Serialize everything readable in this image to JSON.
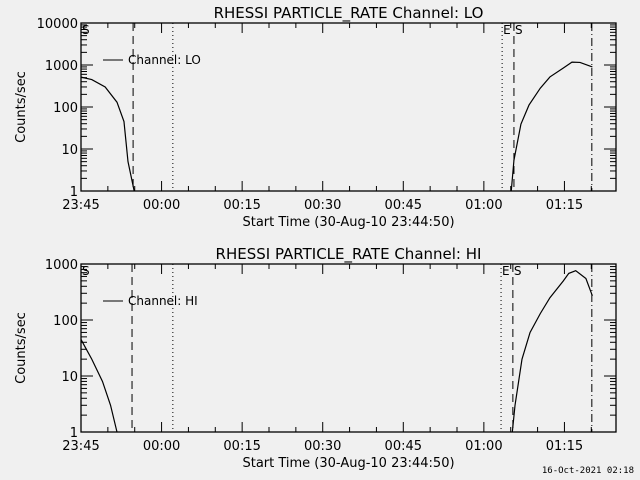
{
  "chart_data": [
    {
      "type": "line",
      "title": "RHESSI PARTICLE_RATE Channel: LO",
      "xlabel": "Start Time (30-Aug-10 23:44:50)",
      "ylabel": "Counts/sec",
      "yscale": "log",
      "ylim": [
        1,
        10000
      ],
      "xlim_minutes_after_2345": [
        0,
        99.6
      ],
      "xticks": [
        {
          "m": 0,
          "label": "23:45"
        },
        {
          "m": 15,
          "label": "00:00"
        },
        {
          "m": 30,
          "label": "00:15"
        },
        {
          "m": 45,
          "label": "00:30"
        },
        {
          "m": 60,
          "label": "00:45"
        },
        {
          "m": 75,
          "label": "01:00"
        },
        {
          "m": 90,
          "label": "01:15"
        }
      ],
      "yticks": [
        {
          "v": 1,
          "label": "1"
        },
        {
          "v": 10,
          "label": "10"
        },
        {
          "v": 100,
          "label": "100"
        },
        {
          "v": 1000,
          "label": "1000"
        },
        {
          "v": 10000,
          "label": "10000"
        }
      ],
      "legend": {
        "label": "Channel: LO",
        "placement": "top-left"
      },
      "markers": [
        {
          "m": 9.7,
          "style": "dashed"
        },
        {
          "m": 17.1,
          "style": "dotted"
        },
        {
          "m": 78.4,
          "style": "dotted"
        },
        {
          "m": 80.6,
          "style": "dashed"
        },
        {
          "m": 95.1,
          "style": "dashdot"
        }
      ],
      "marker_labels": [
        {
          "m": 0,
          "label": "S"
        },
        {
          "m": 78.4,
          "label": "E"
        },
        {
          "m": 80.6,
          "label": "S"
        }
      ],
      "series": [
        {
          "name": "Channel: LO",
          "segments": [
            [
              [
                0,
                515
              ],
              [
                2,
                450
              ],
              [
                4.5,
                300
              ],
              [
                6.7,
                130
              ],
              [
                8,
                45
              ],
              [
                8.75,
                5
              ],
              [
                9.9,
                1
              ]
            ],
            [
              [
                80.1,
                1
              ],
              [
                80.6,
                5.4
              ],
              [
                81.9,
                39
              ],
              [
                83.4,
                111
              ],
              [
                85.5,
                280
              ],
              [
                87.3,
                520
              ],
              [
                89.8,
                850
              ],
              [
                91.4,
                1170
              ],
              [
                92.9,
                1150
              ],
              [
                95.2,
                900
              ]
            ]
          ]
        }
      ]
    },
    {
      "type": "line",
      "title": "RHESSI PARTICLE_RATE Channel: HI",
      "xlabel": "Start Time (30-Aug-10 23:44:50)",
      "ylabel": "Counts/sec",
      "yscale": "log",
      "ylim": [
        1,
        1000
      ],
      "xlim_minutes_after_2345": [
        0,
        99.6
      ],
      "xticks": [
        {
          "m": 0,
          "label": "23:45"
        },
        {
          "m": 15,
          "label": "00:00"
        },
        {
          "m": 30,
          "label": "00:15"
        },
        {
          "m": 45,
          "label": "00:30"
        },
        {
          "m": 60,
          "label": "00:45"
        },
        {
          "m": 75,
          "label": "01:00"
        },
        {
          "m": 90,
          "label": "01:15"
        }
      ],
      "yticks": [
        {
          "v": 1,
          "label": "1"
        },
        {
          "v": 10,
          "label": "10"
        },
        {
          "v": 100,
          "label": "100"
        },
        {
          "v": 1000,
          "label": "1000"
        }
      ],
      "legend": {
        "label": "Channel: HI",
        "placement": "top-left"
      },
      "markers": [
        {
          "m": 9.5,
          "style": "dashed"
        },
        {
          "m": 17.1,
          "style": "dotted"
        },
        {
          "m": 78.2,
          "style": "dotted"
        },
        {
          "m": 80.4,
          "style": "dashed"
        },
        {
          "m": 95.1,
          "style": "dashdot"
        }
      ],
      "marker_labels": [
        {
          "m": 0,
          "label": "S"
        },
        {
          "m": 78.2,
          "label": "E"
        },
        {
          "m": 80.4,
          "label": "S"
        }
      ],
      "series": [
        {
          "name": "Channel: HI",
          "segments": [
            [
              [
                0,
                45
              ],
              [
                1,
                30
              ],
              [
                2,
                20
              ],
              [
                4,
                8
              ],
              [
                5.5,
                3
              ],
              [
                6.7,
                1
              ]
            ],
            [
              [
                80.3,
                1
              ],
              [
                80.8,
                3
              ],
              [
                82.1,
                20
              ],
              [
                83.6,
                60
              ],
              [
                85.5,
                130
              ],
              [
                87.3,
                250
              ],
              [
                89.8,
                500
              ],
              [
                90.8,
                680
              ],
              [
                92.1,
                760
              ],
              [
                94,
                550
              ],
              [
                95.2,
                270
              ]
            ]
          ]
        }
      ]
    }
  ],
  "footer_timestamp": "16-Oct-2021 02:18"
}
